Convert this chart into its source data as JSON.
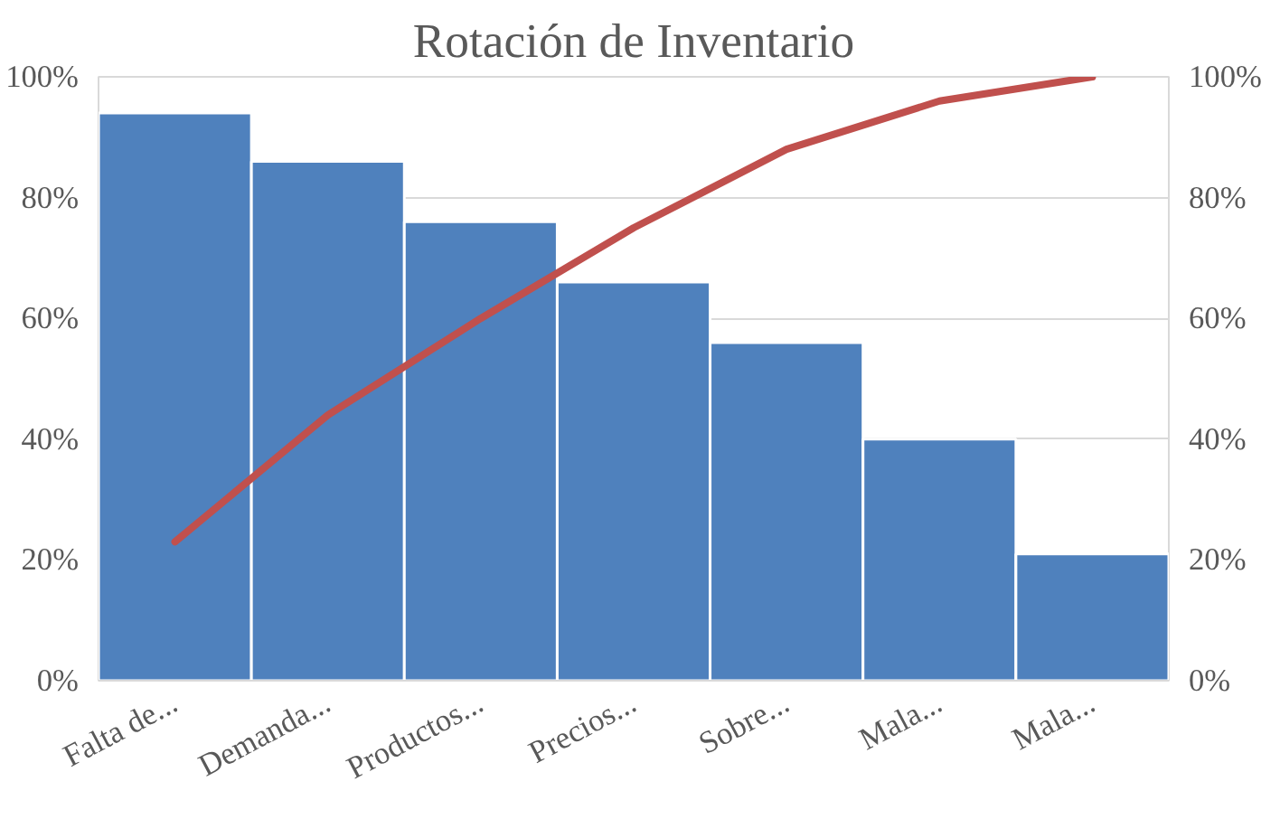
{
  "chart_data": {
    "type": "bar",
    "title": "Rotación de Inventario",
    "categories": [
      "Falta de...",
      "Demanda...",
      "Productos...",
      "Precios...",
      "Sobre...",
      "Mala...",
      "Mala..."
    ],
    "series": [
      {
        "color": "#4f81bd",
        "values": [
          94,
          86,
          76,
          66,
          56,
          40,
          21
        ]
      },
      {
        "type": "line",
        "axis": "y2",
        "color": "#c0504d",
        "values": [
          23,
          44,
          60,
          75,
          88,
          96,
          100
        ]
      }
    ],
    "ylim": [
      0,
      100
    ],
    "yticks": [
      {
        "value": 0,
        "label": "0%"
      },
      {
        "value": 20,
        "label": "20%"
      },
      {
        "value": 40,
        "label": "40%"
      },
      {
        "value": 60,
        "label": "60%"
      },
      {
        "value": 80,
        "label": "80%"
      },
      {
        "value": 100,
        "label": "100%"
      }
    ],
    "y2lim": [
      0,
      100
    ],
    "y2ticks": [
      {
        "value": 0,
        "label": "0%"
      },
      {
        "value": 20,
        "label": "20%"
      },
      {
        "value": 40,
        "label": "40%"
      },
      {
        "value": 60,
        "label": "60%"
      },
      {
        "value": 80,
        "label": "80%"
      },
      {
        "value": 100,
        "label": "100%"
      }
    ],
    "grid": "y",
    "marker": "none",
    "line_style": "solid"
  }
}
